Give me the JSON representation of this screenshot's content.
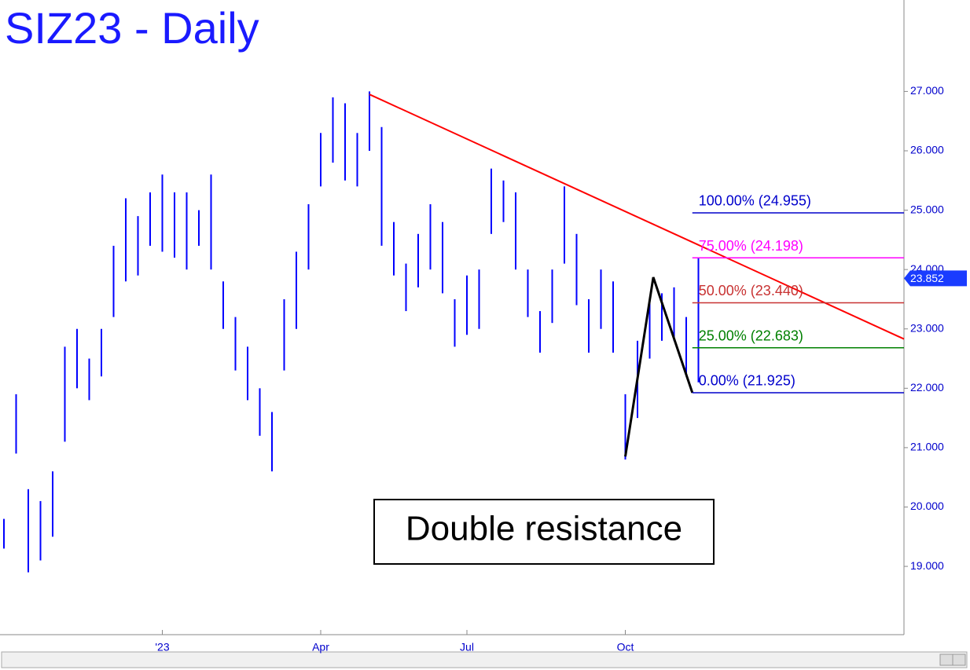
{
  "chart_data": {
    "type": "range_bar",
    "title": "SIZ23 - Daily",
    "annotation": "Double resistance",
    "color": "#0000ff",
    "categories": [
      null,
      null,
      null,
      null,
      null,
      null,
      null,
      null,
      null,
      null,
      null,
      null,
      null,
      "'23",
      null,
      null,
      null,
      null,
      null,
      null,
      null,
      null,
      null,
      null,
      null,
      null,
      "Apr",
      null,
      null,
      null,
      null,
      null,
      null,
      null,
      null,
      null,
      null,
      null,
      "Jul",
      null,
      null,
      null,
      null,
      null,
      null,
      null,
      null,
      null,
      null,
      null,
      null,
      "Oct",
      null,
      null,
      null,
      null,
      null,
      null
    ],
    "high": [
      19.8,
      21.9,
      20.3,
      20.1,
      20.6,
      22.7,
      23.0,
      22.5,
      23.0,
      24.4,
      25.2,
      24.9,
      25.3,
      25.6,
      25.3,
      25.3,
      25.0,
      25.6,
      23.8,
      23.2,
      22.7,
      22.0,
      21.6,
      23.5,
      24.3,
      25.1,
      26.3,
      26.9,
      26.8,
      26.3,
      27.0,
      26.4,
      24.8,
      24.1,
      24.6,
      25.1,
      24.8,
      23.5,
      23.9,
      24.0,
      25.7,
      25.5,
      25.3,
      24.0,
      23.3,
      24.0,
      25.4,
      24.6,
      23.5,
      24.0,
      23.8,
      21.9,
      22.8,
      23.5,
      23.6,
      23.7,
      23.2,
      24.2
    ],
    "low": [
      19.3,
      20.9,
      18.9,
      19.1,
      19.5,
      21.1,
      22.0,
      21.8,
      22.2,
      23.2,
      23.8,
      23.9,
      24.4,
      24.3,
      24.2,
      24.0,
      24.4,
      24.0,
      23.0,
      22.3,
      21.8,
      21.2,
      20.6,
      22.3,
      23.0,
      24.0,
      25.4,
      25.8,
      25.5,
      25.4,
      26.0,
      24.4,
      23.9,
      23.3,
      23.7,
      24.0,
      23.6,
      22.7,
      22.9,
      23.0,
      24.6,
      24.8,
      24.0,
      23.2,
      22.6,
      23.1,
      24.1,
      23.4,
      22.6,
      23.0,
      22.6,
      20.8,
      21.5,
      22.5,
      22.8,
      22.8,
      22.2,
      22.1
    ],
    "last": 23.852,
    "ylim": [
      17.85,
      28.54
    ],
    "yticks": [
      {
        "value": 19,
        "label": "19.000"
      },
      {
        "value": 20,
        "label": "20.000"
      },
      {
        "value": 21,
        "label": "21.000"
      },
      {
        "value": 22,
        "label": "22.000"
      },
      {
        "value": 23,
        "label": "23.000"
      },
      {
        "value": 24,
        "label": "24.000"
      },
      {
        "value": 25,
        "label": "25.000"
      },
      {
        "value": 26,
        "label": "26.000"
      },
      {
        "value": 27,
        "label": "27.000"
      }
    ],
    "trendline": {
      "start": 26.95,
      "end": 22.83,
      "color": "#ff0000"
    },
    "pattern": {
      "values": [
        20.85,
        23.87,
        21.925
      ],
      "color": "#000000"
    },
    "levels": [
      {
        "label": "100.00% (24.955)",
        "value": 24.955,
        "color": "#0000cc"
      },
      {
        "label": "75.00% (24.198)",
        "value": 24.198,
        "color": "#ff00ff"
      },
      {
        "label": "50.00% (23.440)",
        "value": 23.44,
        "color": "#c83232"
      },
      {
        "label": "25.00% (22.683)",
        "value": 22.683,
        "color": "#008000"
      },
      {
        "label": "0.00% (21.925)",
        "value": 21.925,
        "color": "#0000cc"
      }
    ]
  }
}
